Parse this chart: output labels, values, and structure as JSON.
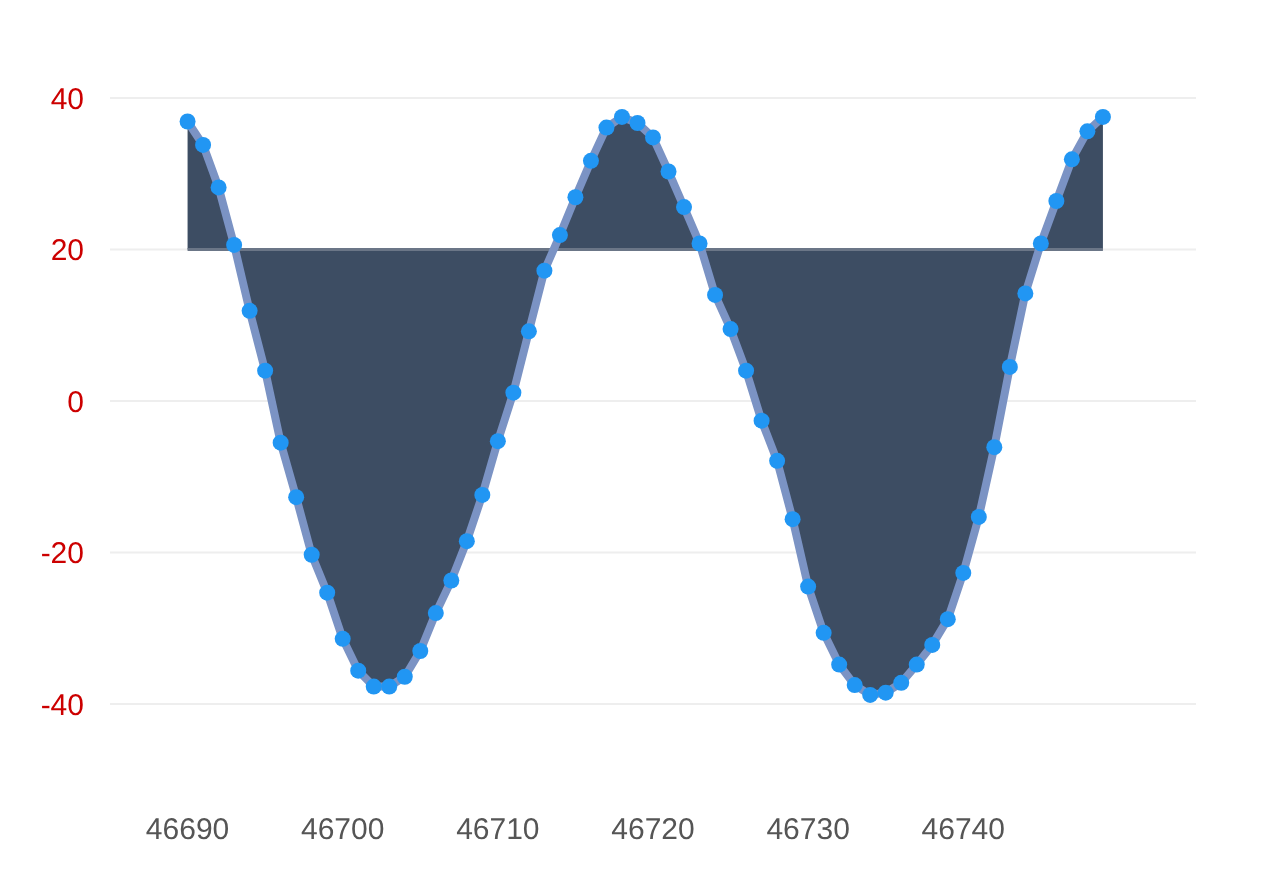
{
  "chart_data": {
    "type": "area",
    "x": [
      46690,
      46691,
      46692,
      46693,
      46694,
      46695,
      46696,
      46697,
      46698,
      46699,
      46700,
      46701,
      46702,
      46703,
      46704,
      46705,
      46706,
      46707,
      46708,
      46709,
      46710,
      46711,
      46712,
      46713,
      46714,
      46715,
      46716,
      46717,
      46718,
      46719,
      46720,
      46721,
      46722,
      46723,
      46724,
      46725,
      46726,
      46727,
      46728,
      46729,
      46730,
      46731,
      46732,
      46733,
      46734,
      46735,
      46736,
      46737,
      46738,
      46739,
      46740,
      46741,
      46742,
      46743,
      46744,
      46745,
      46746,
      46747,
      46748,
      46749
    ],
    "series": [
      {
        "color": "#3d4d63",
        "values": [
          36.9,
          33.8,
          28.2,
          20.6,
          11.9,
          4.0,
          -5.5,
          -12.7,
          -20.3,
          -25.3,
          -31.4,
          -35.6,
          -37.7,
          -37.7,
          -36.4,
          -33.0,
          -28.0,
          -23.7,
          -18.5,
          -12.4,
          -5.3,
          1.1,
          9.2,
          17.2,
          21.9,
          26.9,
          31.7,
          36.1,
          37.5,
          36.7,
          34.8,
          30.3,
          25.6,
          20.8,
          14.0,
          9.5,
          4.0,
          -2.6,
          -7.9,
          -15.6,
          -24.5,
          -30.6,
          -34.8,
          -37.5,
          -38.8,
          -38.5,
          -37.2,
          -34.8,
          -32.2,
          -28.8,
          -22.7,
          -15.3,
          -6.1,
          4.5,
          14.2,
          20.8,
          26.4,
          31.9,
          35.6,
          37.5
        ]
      }
    ],
    "ref_lines": [
      {
        "axis": "y",
        "value": 20,
        "color": "#6b7687"
      }
    ],
    "xlim": [
      46685,
      46755
    ],
    "xticks": [
      46690,
      46700,
      46710,
      46720,
      46730,
      46740
    ],
    "ylim": [
      -40,
      40
    ],
    "yticks": [
      -40,
      -20,
      0,
      20,
      40
    ],
    "grid": "y",
    "marker": "circle",
    "line_style": "solid"
  }
}
